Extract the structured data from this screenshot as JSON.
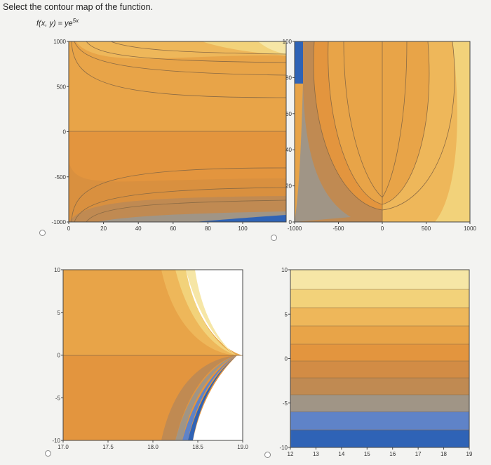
{
  "question": {
    "prompt": "Select the contour map of the function.",
    "function_lhs": "f(x, y) = ye",
    "function_exp": "5x"
  },
  "options": [
    {
      "id": "A",
      "x_ticks": [
        "0",
        "20",
        "40",
        "60",
        "80",
        "100"
      ],
      "y_ticks": [
        "1000",
        "500",
        "0",
        "-500",
        "-1000"
      ]
    },
    {
      "id": "B",
      "x_ticks": [
        "-1000",
        "-500",
        "0",
        "500",
        "1000"
      ],
      "y_ticks": [
        "100",
        "80",
        "60",
        "40",
        "20",
        "0"
      ]
    },
    {
      "id": "C",
      "x_ticks": [
        "17.0",
        "17.5",
        "18.0",
        "18.5",
        "19.0"
      ],
      "y_ticks": [
        "10",
        "5",
        "0",
        "-5",
        "-10"
      ]
    },
    {
      "id": "D",
      "x_ticks": [
        "12",
        "13",
        "14",
        "15",
        "16",
        "17",
        "18",
        "19"
      ],
      "y_ticks": [
        "10",
        "5",
        "0",
        "-5",
        "-10"
      ]
    }
  ],
  "colors": {
    "lightest": "#f6e6a6",
    "light": "#f2d27a",
    "mid": "#eeb75a",
    "orange": "#e8a448",
    "deep_orange": "#e3953e",
    "brown": "#c08a52",
    "gray": "#a09586",
    "bluegray": "#8893ae",
    "lightblue": "#5f83c8",
    "blue": "#2f63b6",
    "line": "#8a6a44"
  }
}
